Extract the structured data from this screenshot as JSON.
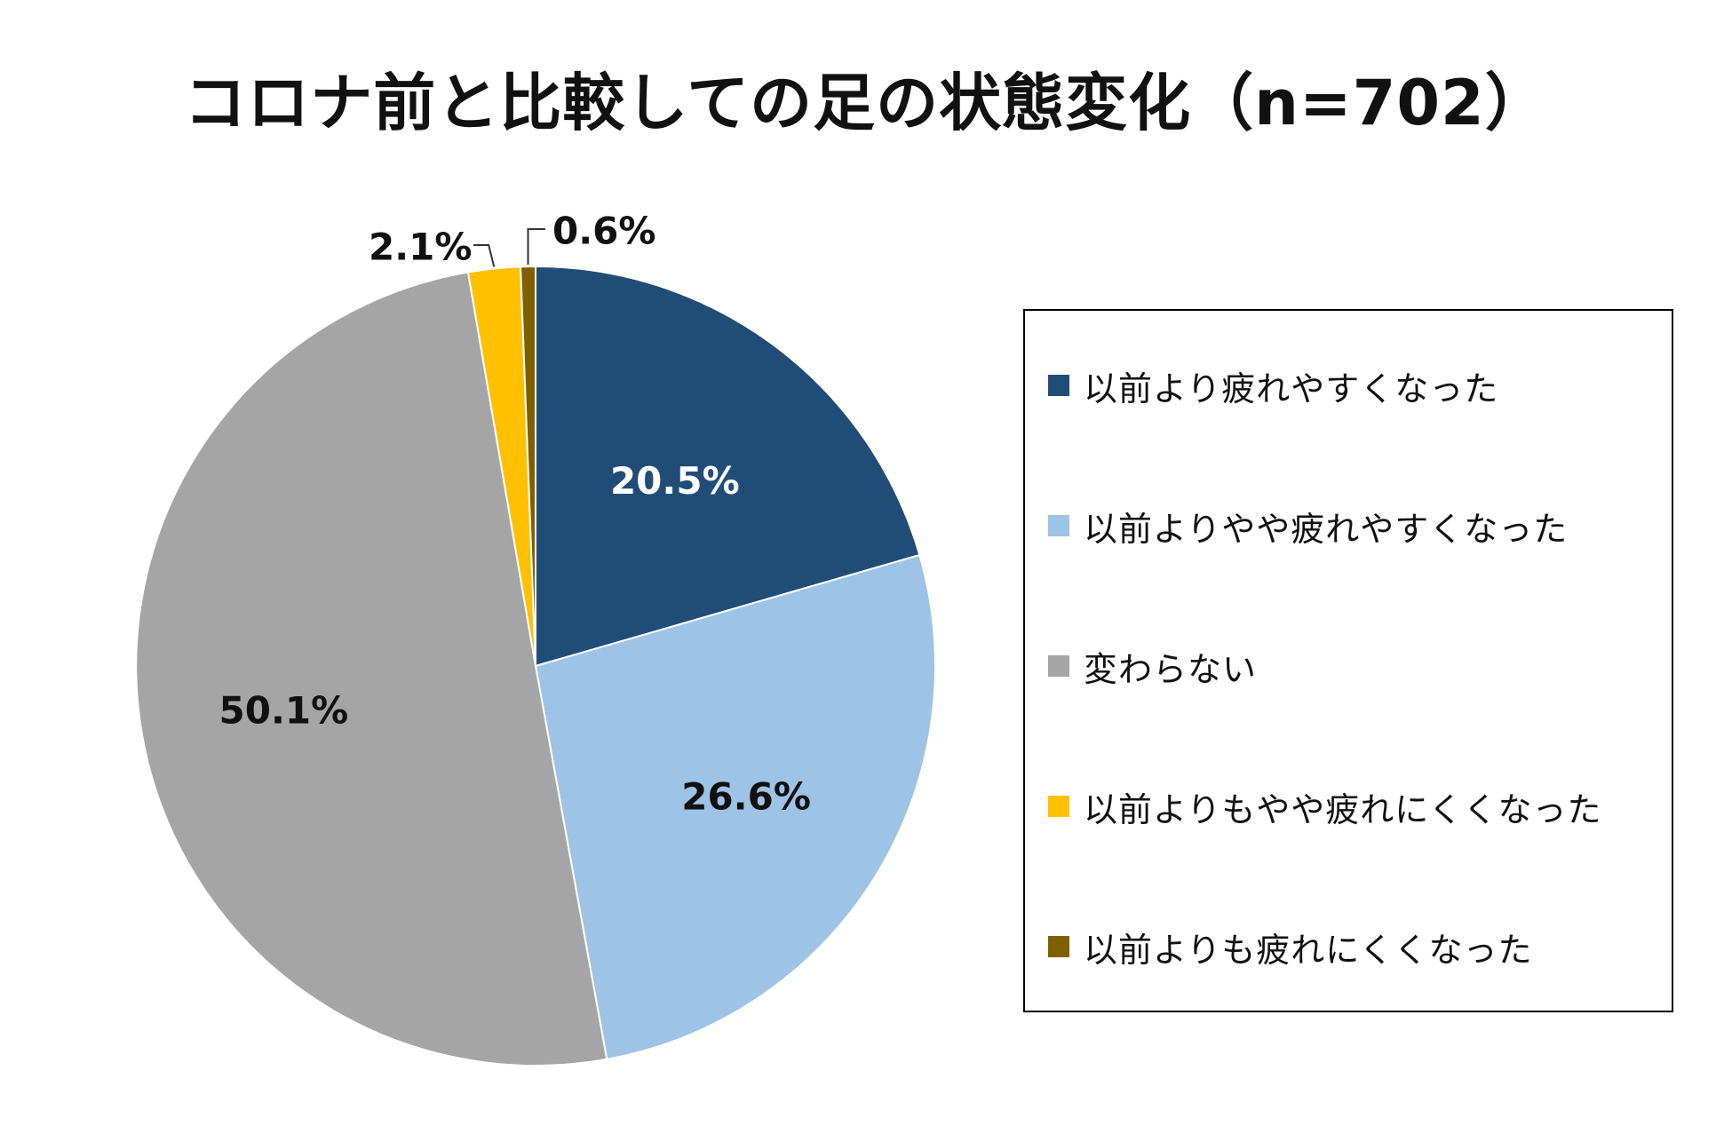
{
  "title": "コロナ前と比較しての足の状態変化（n=702）",
  "chart_data": {
    "type": "pie",
    "title": "コロナ前と比較しての足の状態変化（n=702）",
    "start_angle_deg": 0,
    "direction": "clockwise",
    "legend_position": "right",
    "slices": [
      {
        "label": "以前より疲れやすくなった",
        "value": 20.5,
        "display": "20.5%",
        "color": "#204d78"
      },
      {
        "label": "以前よりやや疲れやすくなった",
        "value": 26.6,
        "display": "26.6%",
        "color": "#9dc3e6"
      },
      {
        "label": "変わらない",
        "value": 50.1,
        "display": "50.1%",
        "color": "#a5a5a5"
      },
      {
        "label": "以前よりもやや疲れにくくなった",
        "value": 2.1,
        "display": "2.1%",
        "color": "#ffc000"
      },
      {
        "label": "以前よりも疲れにくくなった",
        "value": 0.6,
        "display": "0.6%",
        "color": "#7f6000"
      }
    ]
  }
}
